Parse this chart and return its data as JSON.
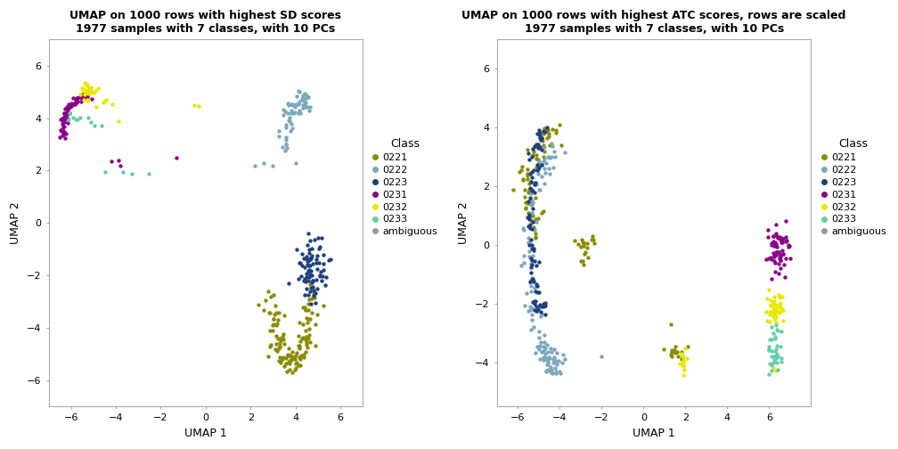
{
  "title1": "UMAP on 1000 rows with highest SD scores\n1977 samples with 7 classes, with 10 PCs",
  "title2": "UMAP on 1000 rows with highest ATC scores, rows are scaled\n1977 samples with 7 classes, with 10 PCs",
  "xlabel": "UMAP 1",
  "ylabel": "UMAP 2",
  "legend_title": "Class",
  "classes": [
    "0221",
    "0222",
    "0223",
    "0231",
    "0232",
    "0233",
    "ambiguous"
  ],
  "colors": {
    "0221": "#8B8B00",
    "0222": "#7BA7BC",
    "0223": "#1F3F7A",
    "0231": "#8B008B",
    "0232": "#E8E800",
    "0233": "#66CDAA",
    "ambiguous": "#999999"
  },
  "xlim1": [
    -7,
    7
  ],
  "ylim1": [
    -7,
    7
  ],
  "xlim2": [
    -7,
    8
  ],
  "ylim2": [
    -5.5,
    7
  ],
  "xticks1": [
    -6,
    -4,
    -2,
    0,
    2,
    4,
    6
  ],
  "yticks1": [
    -6,
    -4,
    -2,
    0,
    2,
    4,
    6
  ],
  "xticks2": [
    -6,
    -4,
    -2,
    0,
    2,
    4,
    6
  ],
  "yticks2": [
    -4,
    -2,
    0,
    2,
    4,
    6
  ],
  "background_color": "#FFFFFF",
  "panel_bg": "#FFFFFF",
  "point_size": 10,
  "title_fontsize": 9,
  "axis_fontsize": 9,
  "tick_fontsize": 8
}
